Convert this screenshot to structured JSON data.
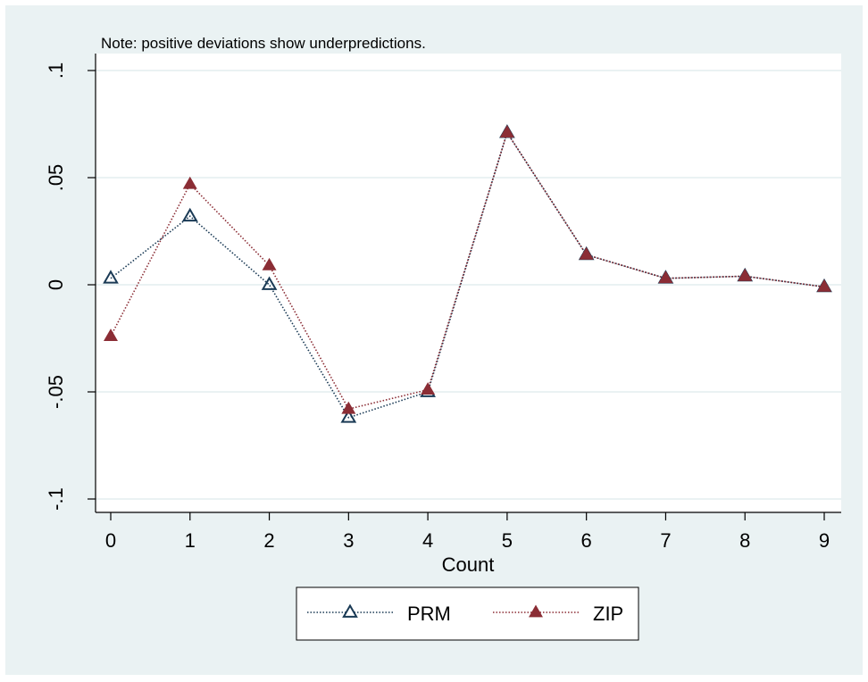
{
  "chart_data": {
    "type": "line",
    "note": "Note: positive deviations show underpredictions.",
    "xlabel": "Count",
    "ylabel": "",
    "x": [
      0,
      1,
      2,
      3,
      4,
      5,
      6,
      7,
      8,
      9
    ],
    "x_tick_labels": [
      "0",
      "1",
      "2",
      "3",
      "4",
      "5",
      "6",
      "7",
      "8",
      "9"
    ],
    "y_ticks": [
      -0.1,
      -0.05,
      0,
      0.05,
      0.1
    ],
    "y_tick_labels": [
      "-.1",
      "-.05",
      "0",
      ".05",
      ".1"
    ],
    "xlim": [
      -0.2,
      9.2
    ],
    "ylim": [
      -0.107,
      0.1
    ],
    "grid": true,
    "legend_position": "bottom",
    "series": [
      {
        "name": "PRM",
        "values": [
          0.003,
          0.032,
          0.0,
          -0.062,
          -0.05,
          0.071,
          0.014,
          0.003,
          0.004,
          -0.001
        ],
        "line_color": "#1a3a55",
        "marker": "hollow-triangle"
      },
      {
        "name": "ZIP",
        "values": [
          -0.024,
          0.047,
          0.009,
          -0.058,
          -0.049,
          0.071,
          0.014,
          0.003,
          0.004,
          -0.001
        ],
        "line_color": "#8b2d35",
        "marker": "filled-triangle"
      }
    ],
    "colors": {
      "outer_background": "#eaf2f3",
      "plot_background": "#ffffff",
      "gridline": "#eaf2f3",
      "prm": "#1a3a55",
      "zip": "#8b2d35"
    }
  }
}
